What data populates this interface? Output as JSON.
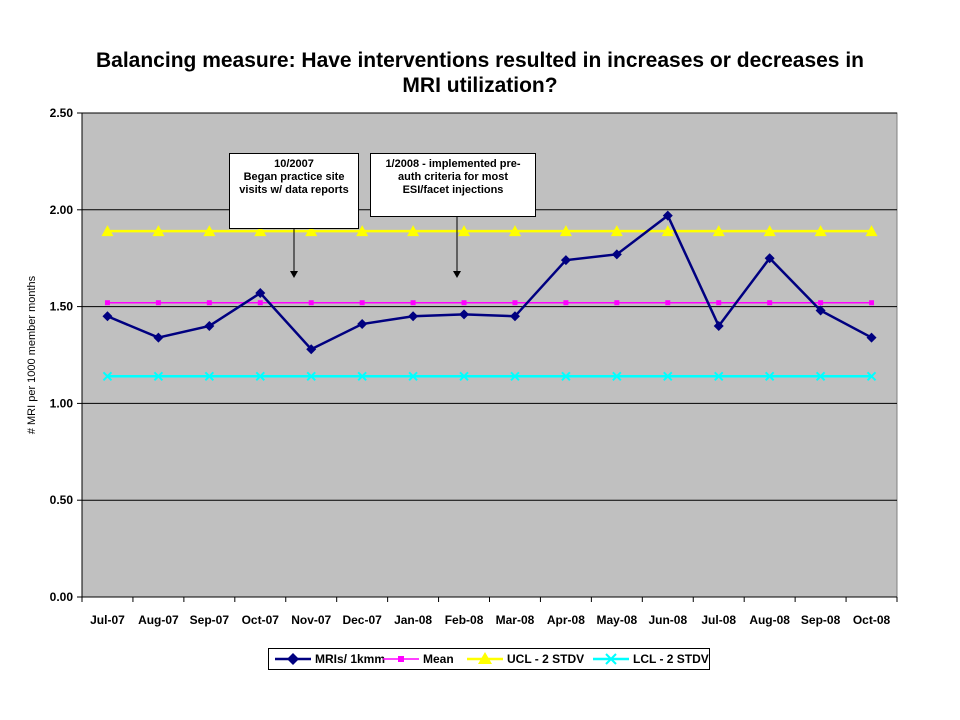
{
  "chart_title_line1": "Balancing measure: Have interventions resulted in increases or decreases in",
  "chart_title_line2": "MRI utilization?",
  "annotations": [
    {
      "lines": [
        "10/2007",
        "Began practice site",
        "visits w/ data reports"
      ],
      "points_to": "Nov-07"
    },
    {
      "lines": [
        "1/2008 - implemented pre-",
        "auth criteria for most",
        "ESI/facet injections"
      ],
      "points_to": "Feb-08"
    }
  ],
  "chart_data": {
    "type": "line",
    "title": "Balancing measure: Have interventions resulted in increases or decreases in MRI utilization?",
    "xlabel": "",
    "ylabel": "# MRI per 1000 member months",
    "ylim": [
      0,
      2.5
    ],
    "yticks": [
      "0.00",
      "0.50",
      "1.00",
      "1.50",
      "2.00",
      "2.50"
    ],
    "grid": true,
    "legend_position": "bottom",
    "plot_background": "#C0C0C0",
    "categories": [
      "Jul-07",
      "Aug-07",
      "Sep-07",
      "Oct-07",
      "Nov-07",
      "Dec-07",
      "Jan-08",
      "Feb-08",
      "Mar-08",
      "Apr-08",
      "May-08",
      "Jun-08",
      "Jul-08",
      "Aug-08",
      "Sep-08",
      "Oct-08"
    ],
    "series": [
      {
        "name": "MRIs/ 1kmm",
        "color": "#000080",
        "marker": "diamond",
        "values": [
          1.45,
          1.34,
          1.4,
          1.57,
          1.28,
          1.41,
          1.45,
          1.46,
          1.45,
          1.74,
          1.77,
          1.97,
          1.4,
          1.75,
          1.48,
          1.34
        ]
      },
      {
        "name": "Mean",
        "color": "#FF00FF",
        "marker": "square",
        "values": [
          1.52,
          1.52,
          1.52,
          1.52,
          1.52,
          1.52,
          1.52,
          1.52,
          1.52,
          1.52,
          1.52,
          1.52,
          1.52,
          1.52,
          1.52,
          1.52
        ]
      },
      {
        "name": "UCL - 2 STDV",
        "color": "#FFFF00",
        "marker": "triangle",
        "values": [
          1.89,
          1.89,
          1.89,
          1.89,
          1.89,
          1.89,
          1.89,
          1.89,
          1.89,
          1.89,
          1.89,
          1.89,
          1.89,
          1.89,
          1.89,
          1.89
        ]
      },
      {
        "name": "LCL - 2 STDV",
        "color": "#00FFFF",
        "marker": "x",
        "values": [
          1.14,
          1.14,
          1.14,
          1.14,
          1.14,
          1.14,
          1.14,
          1.14,
          1.14,
          1.14,
          1.14,
          1.14,
          1.14,
          1.14,
          1.14,
          1.14
        ]
      }
    ]
  }
}
